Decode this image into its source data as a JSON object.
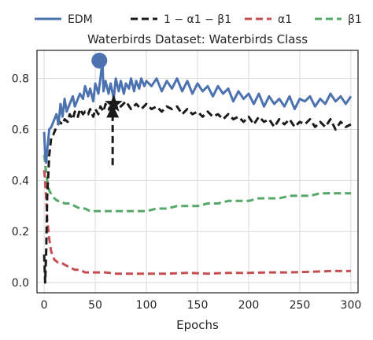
{
  "chart_data": {
    "type": "line",
    "title": "Waterbirds Dataset: Waterbirds Class",
    "xlabel": "Epochs",
    "ylabel": "",
    "xlim": [
      -7,
      307
    ],
    "ylim": [
      -0.04,
      0.91
    ],
    "xticks": [
      0,
      50,
      100,
      150,
      200,
      250,
      300
    ],
    "yticks": [
      0.0,
      0.2,
      0.4,
      0.6,
      0.8
    ],
    "ytick_labels": [
      "0.0",
      "0.2",
      "0.4",
      "0.6",
      "0.8"
    ],
    "grid": true,
    "legend_position": "top",
    "series": [
      {
        "name": "EDM",
        "color": "#4c72b0",
        "dash": "solid",
        "points": [
          [
            0,
            0.59
          ],
          [
            1,
            0.5
          ],
          [
            2,
            0.47
          ],
          [
            3,
            0.52
          ],
          [
            5,
            0.6
          ],
          [
            7,
            0.61
          ],
          [
            10,
            0.64
          ],
          [
            12,
            0.66
          ],
          [
            14,
            0.62
          ],
          [
            16,
            0.7
          ],
          [
            18,
            0.65
          ],
          [
            20,
            0.72
          ],
          [
            22,
            0.67
          ],
          [
            25,
            0.7
          ],
          [
            28,
            0.73
          ],
          [
            30,
            0.69
          ],
          [
            33,
            0.72
          ],
          [
            35,
            0.74
          ],
          [
            38,
            0.72
          ],
          [
            40,
            0.77
          ],
          [
            43,
            0.73
          ],
          [
            45,
            0.76
          ],
          [
            48,
            0.71
          ],
          [
            50,
            0.78
          ],
          [
            53,
            0.74
          ],
          [
            55,
            0.8
          ],
          [
            57,
            0.87
          ],
          [
            58,
            0.75
          ],
          [
            60,
            0.79
          ],
          [
            63,
            0.74
          ],
          [
            65,
            0.78
          ],
          [
            68,
            0.72
          ],
          [
            70,
            0.8
          ],
          [
            73,
            0.75
          ],
          [
            75,
            0.79
          ],
          [
            78,
            0.74
          ],
          [
            80,
            0.78
          ],
          [
            83,
            0.76
          ],
          [
            85,
            0.8
          ],
          [
            88,
            0.75
          ],
          [
            90,
            0.79
          ],
          [
            93,
            0.76
          ],
          [
            95,
            0.8
          ],
          [
            98,
            0.77
          ],
          [
            100,
            0.79
          ],
          [
            105,
            0.77
          ],
          [
            110,
            0.8
          ],
          [
            115,
            0.75
          ],
          [
            120,
            0.79
          ],
          [
            125,
            0.76
          ],
          [
            130,
            0.8
          ],
          [
            135,
            0.75
          ],
          [
            140,
            0.79
          ],
          [
            145,
            0.74
          ],
          [
            150,
            0.78
          ],
          [
            155,
            0.75
          ],
          [
            160,
            0.77
          ],
          [
            165,
            0.73
          ],
          [
            170,
            0.77
          ],
          [
            175,
            0.74
          ],
          [
            180,
            0.76
          ],
          [
            185,
            0.71
          ],
          [
            190,
            0.75
          ],
          [
            195,
            0.72
          ],
          [
            200,
            0.74
          ],
          [
            205,
            0.7
          ],
          [
            210,
            0.74
          ],
          [
            215,
            0.69
          ],
          [
            220,
            0.73
          ],
          [
            225,
            0.7
          ],
          [
            230,
            0.72
          ],
          [
            235,
            0.69
          ],
          [
            240,
            0.73
          ],
          [
            245,
            0.68
          ],
          [
            250,
            0.72
          ],
          [
            255,
            0.71
          ],
          [
            260,
            0.73
          ],
          [
            265,
            0.69
          ],
          [
            270,
            0.72
          ],
          [
            275,
            0.7
          ],
          [
            280,
            0.74
          ],
          [
            285,
            0.71
          ],
          [
            290,
            0.73
          ],
          [
            295,
            0.7
          ],
          [
            300,
            0.73
          ]
        ]
      },
      {
        "name": "1 − α1 − β1",
        "color": "#1a1a1a",
        "dash": "dashed",
        "points": [
          [
            0,
            0.11
          ],
          [
            1,
            0.0
          ],
          [
            2,
            0.12
          ],
          [
            3,
            0.34
          ],
          [
            5,
            0.5
          ],
          [
            7,
            0.57
          ],
          [
            9,
            0.58
          ],
          [
            12,
            0.61
          ],
          [
            15,
            0.63
          ],
          [
            18,
            0.62
          ],
          [
            20,
            0.64
          ],
          [
            23,
            0.63
          ],
          [
            25,
            0.66
          ],
          [
            28,
            0.64
          ],
          [
            30,
            0.67
          ],
          [
            33,
            0.65
          ],
          [
            35,
            0.68
          ],
          [
            38,
            0.66
          ],
          [
            40,
            0.67
          ],
          [
            43,
            0.66
          ],
          [
            45,
            0.68
          ],
          [
            48,
            0.65
          ],
          [
            50,
            0.68
          ],
          [
            53,
            0.66
          ],
          [
            55,
            0.69
          ],
          [
            58,
            0.67
          ],
          [
            60,
            0.7
          ],
          [
            63,
            0.68
          ],
          [
            65,
            0.69
          ],
          [
            68,
            0.67
          ],
          [
            70,
            0.7
          ],
          [
            75,
            0.69
          ],
          [
            80,
            0.71
          ],
          [
            85,
            0.68
          ],
          [
            90,
            0.7
          ],
          [
            95,
            0.68
          ],
          [
            100,
            0.7
          ],
          [
            105,
            0.68
          ],
          [
            110,
            0.69
          ],
          [
            115,
            0.67
          ],
          [
            120,
            0.69
          ],
          [
            125,
            0.68
          ],
          [
            130,
            0.69
          ],
          [
            135,
            0.66
          ],
          [
            140,
            0.68
          ],
          [
            145,
            0.66
          ],
          [
            150,
            0.67
          ],
          [
            155,
            0.65
          ],
          [
            160,
            0.67
          ],
          [
            165,
            0.65
          ],
          [
            170,
            0.66
          ],
          [
            175,
            0.64
          ],
          [
            180,
            0.66
          ],
          [
            185,
            0.64
          ],
          [
            190,
            0.65
          ],
          [
            195,
            0.63
          ],
          [
            200,
            0.65
          ],
          [
            205,
            0.62
          ],
          [
            210,
            0.65
          ],
          [
            215,
            0.63
          ],
          [
            220,
            0.64
          ],
          [
            225,
            0.61
          ],
          [
            230,
            0.64
          ],
          [
            235,
            0.62
          ],
          [
            240,
            0.64
          ],
          [
            245,
            0.61
          ],
          [
            250,
            0.63
          ],
          [
            255,
            0.62
          ],
          [
            260,
            0.64
          ],
          [
            265,
            0.61
          ],
          [
            270,
            0.63
          ],
          [
            275,
            0.61
          ],
          [
            280,
            0.64
          ],
          [
            285,
            0.6
          ],
          [
            290,
            0.63
          ],
          [
            295,
            0.61
          ],
          [
            300,
            0.62
          ]
        ]
      },
      {
        "name": "α1",
        "color": "#c44e52",
        "dash": "dashed",
        "points": [
          [
            0,
            0.44
          ],
          [
            1,
            0.4
          ],
          [
            2,
            0.33
          ],
          [
            3,
            0.25
          ],
          [
            5,
            0.17
          ],
          [
            7,
            0.12
          ],
          [
            10,
            0.09
          ],
          [
            13,
            0.08
          ],
          [
            16,
            0.08
          ],
          [
            20,
            0.07
          ],
          [
            25,
            0.06
          ],
          [
            30,
            0.05
          ],
          [
            35,
            0.05
          ],
          [
            40,
            0.04
          ],
          [
            50,
            0.04
          ],
          [
            60,
            0.04
          ],
          [
            70,
            0.035
          ],
          [
            80,
            0.035
          ],
          [
            100,
            0.035
          ],
          [
            120,
            0.035
          ],
          [
            140,
            0.038
          ],
          [
            160,
            0.035
          ],
          [
            180,
            0.038
          ],
          [
            200,
            0.038
          ],
          [
            220,
            0.04
          ],
          [
            240,
            0.04
          ],
          [
            260,
            0.042
          ],
          [
            280,
            0.045
          ],
          [
            300,
            0.045
          ]
        ]
      },
      {
        "name": "β1",
        "color": "#55a868",
        "dash": "dashed",
        "points": [
          [
            0,
            0.5
          ],
          [
            1,
            0.47
          ],
          [
            2,
            0.43
          ],
          [
            3,
            0.4
          ],
          [
            5,
            0.36
          ],
          [
            8,
            0.34
          ],
          [
            10,
            0.33
          ],
          [
            13,
            0.32
          ],
          [
            16,
            0.32
          ],
          [
            20,
            0.31
          ],
          [
            25,
            0.31
          ],
          [
            30,
            0.3
          ],
          [
            35,
            0.29
          ],
          [
            40,
            0.29
          ],
          [
            45,
            0.28
          ],
          [
            50,
            0.28
          ],
          [
            60,
            0.28
          ],
          [
            70,
            0.28
          ],
          [
            80,
            0.28
          ],
          [
            90,
            0.28
          ],
          [
            100,
            0.28
          ],
          [
            110,
            0.29
          ],
          [
            120,
            0.29
          ],
          [
            130,
            0.3
          ],
          [
            140,
            0.3
          ],
          [
            150,
            0.3
          ],
          [
            160,
            0.31
          ],
          [
            170,
            0.31
          ],
          [
            180,
            0.32
          ],
          [
            190,
            0.32
          ],
          [
            200,
            0.32
          ],
          [
            210,
            0.33
          ],
          [
            220,
            0.33
          ],
          [
            230,
            0.33
          ],
          [
            240,
            0.34
          ],
          [
            250,
            0.34
          ],
          [
            260,
            0.34
          ],
          [
            270,
            0.35
          ],
          [
            280,
            0.35
          ],
          [
            290,
            0.35
          ],
          [
            300,
            0.35
          ]
        ]
      }
    ],
    "annotations": [
      {
        "type": "circle-marker",
        "series": "EDM",
        "x": 54,
        "y": 0.87,
        "color": "#4c72b0"
      },
      {
        "type": "star-marker",
        "series": "1 − α1 − β1",
        "x": 68,
        "y": 0.7,
        "color": "#1a1a1a"
      },
      {
        "type": "triangle-marker",
        "x": 67,
        "y": 0.665,
        "color": "#1a1a1a"
      },
      {
        "type": "vertical-dashed-line",
        "x": 67,
        "y_from": 0.46,
        "y_to": 0.66,
        "color": "#1a1a1a"
      }
    ]
  }
}
